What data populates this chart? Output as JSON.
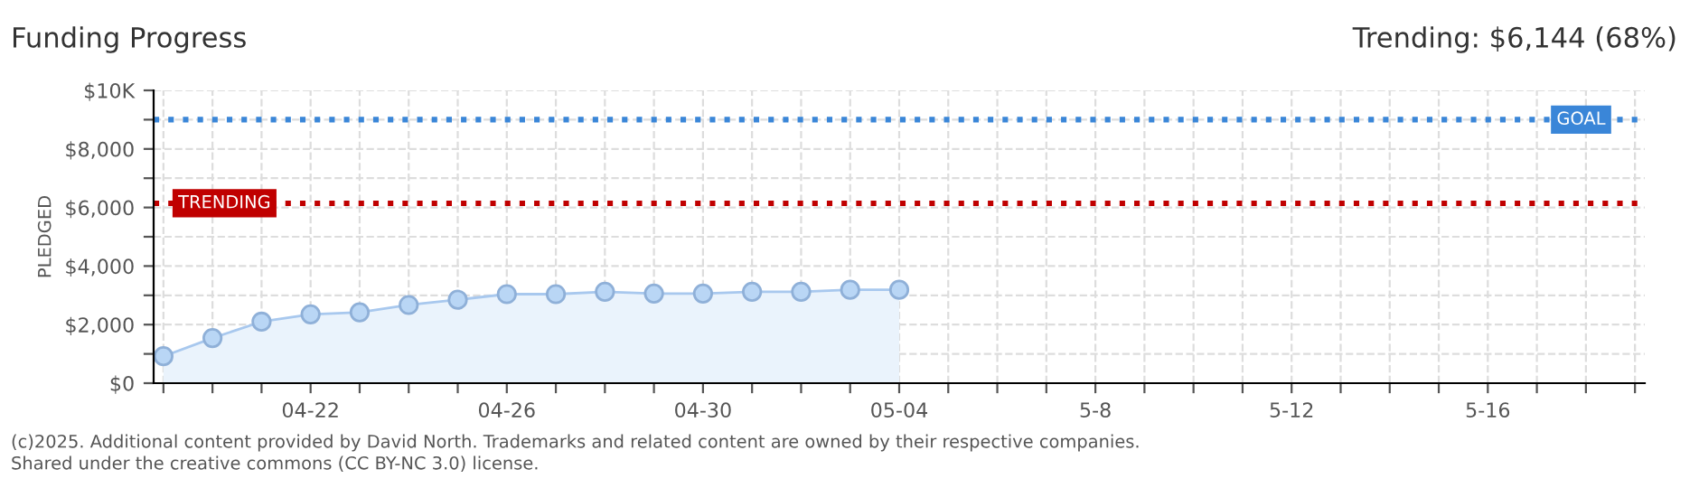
{
  "chart_data": {
    "type": "area",
    "title": "Funding Progress",
    "ylabel": "PLEDGED",
    "categories": [
      null,
      null,
      null,
      "04-22",
      null,
      null,
      null,
      "04-26",
      null,
      null,
      null,
      "04-30",
      null,
      null,
      null,
      "05-04",
      null,
      null,
      null,
      "5-8",
      null,
      null,
      null,
      "5-12",
      null,
      null,
      null,
      "5-16",
      null,
      null,
      null
    ],
    "series": [
      {
        "color": "#a8c8ee",
        "values": [
          920,
          1540,
          2100,
          2350,
          2420,
          2670,
          2850,
          3040,
          3040,
          3120,
          3060,
          3060,
          3120,
          3120,
          3190,
          3190,
          null,
          null,
          null,
          null,
          null,
          null,
          null,
          null,
          null,
          null,
          null,
          null,
          null,
          null,
          null
        ]
      }
    ],
    "ylim": [
      0,
      10000
    ],
    "yticks": [
      {
        "value": 0,
        "label": "$0"
      },
      {
        "value": 1000,
        "label": null
      },
      {
        "value": 2000,
        "label": "$2,000"
      },
      {
        "value": 3000,
        "label": null
      },
      {
        "value": 4000,
        "label": "$4,000"
      },
      {
        "value": 5000,
        "label": null
      },
      {
        "value": 6000,
        "label": "$6,000"
      },
      {
        "value": 7000,
        "label": null
      },
      {
        "value": 8000,
        "label": "$8,000"
      },
      {
        "value": 9000,
        "label": null
      },
      {
        "value": 10000,
        "label": "$10K"
      }
    ],
    "ref_lines": [
      {
        "axis": "y",
        "value": 9000,
        "label": "GOAL",
        "color": "#3a86d8",
        "line_style": "dotted"
      },
      {
        "axis": "y",
        "value": 6144,
        "label": "TRENDING",
        "color": "#c00000",
        "line_style": "dotted"
      }
    ],
    "annotations": [
      "Trending: $6,144 (68%)",
      "(c)2025. Additional content provided by David North. Trademarks and related content are owned by their respective companies.",
      "Shared under the creative commons (CC BY-NC 3.0) license."
    ],
    "grid": true,
    "marker": "circle",
    "line_style": "solid"
  }
}
